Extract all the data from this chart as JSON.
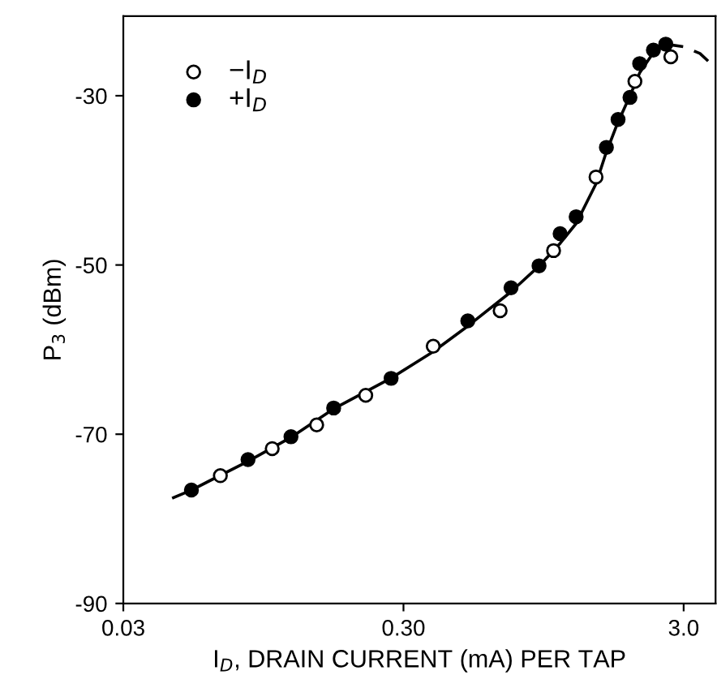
{
  "chart_data": {
    "type": "scatter",
    "xlabel": "I$_{D}$, DRAIN CURRENT (mA) PER TAP",
    "ylabel": "P$_{3}$ (dBm)",
    "log": "x",
    "xlim": [
      0.03,
      3.9
    ],
    "ylim": [
      -90,
      -20.6
    ],
    "xticks": [
      {
        "value": 0.03,
        "label": "0.03"
      },
      {
        "value": 0.3,
        "label": "0.30"
      },
      {
        "value": 3,
        "label": "3.0"
      }
    ],
    "yticks": [
      -30,
      -50,
      -70,
      -90
    ],
    "grid": false,
    "legend": "top left",
    "series": [
      {
        "name": "−I$_{D}$",
        "color": "#ffffff",
        "marker": "circle",
        "x": [
          0.0666,
          0.102,
          0.147,
          0.22,
          0.383,
          0.664,
          1.03,
          1.46,
          2.01,
          2.7
        ],
        "values": [
          -74.9,
          -71.7,
          -68.9,
          -65.4,
          -59.6,
          -55.4,
          -48.3,
          -39.6,
          -28.3,
          -25.4
        ]
      },
      {
        "name": "+I$_{D}$",
        "color": "#000000",
        "marker": "circle",
        "x": [
          0.0525,
          0.0836,
          0.119,
          0.169,
          0.271,
          0.509,
          0.726,
          0.914,
          1.087,
          1.24,
          1.59,
          1.75,
          1.93,
          2.09,
          2.34,
          2.59
        ],
        "values": [
          -76.6,
          -73.0,
          -70.3,
          -66.9,
          -63.4,
          -56.6,
          -52.7,
          -50.1,
          -46.3,
          -44.3,
          -36.1,
          -32.8,
          -30.2,
          -26.2,
          -24.6,
          -23.9
        ]
      },
      {
        "type": "line",
        "color": "#000000",
        "line_style": "solid",
        "marker": "none",
        "x": [
          0.0453,
          0.0525,
          0.0836,
          0.12,
          0.169,
          0.27,
          0.381,
          0.51,
          0.724,
          0.916,
          1.09,
          1.24,
          1.46,
          1.58,
          1.74,
          1.93,
          2.09,
          2.33,
          2.59
        ],
        "values": [
          -77.5,
          -76.6,
          -73.2,
          -70.3,
          -67.0,
          -63.4,
          -60.3,
          -57.2,
          -53.2,
          -50.1,
          -47.4,
          -45.1,
          -40.4,
          -36.9,
          -33.3,
          -30.0,
          -27.3,
          -25.0,
          -23.9
        ]
      },
      {
        "type": "line",
        "color": "#000000",
        "line_style": "dashed",
        "marker": "none",
        "x": [
          2.59,
          3.0,
          3.43,
          3.81
        ],
        "values": [
          -23.9,
          -24.2,
          -25.0,
          -26.4
        ]
      }
    ]
  }
}
